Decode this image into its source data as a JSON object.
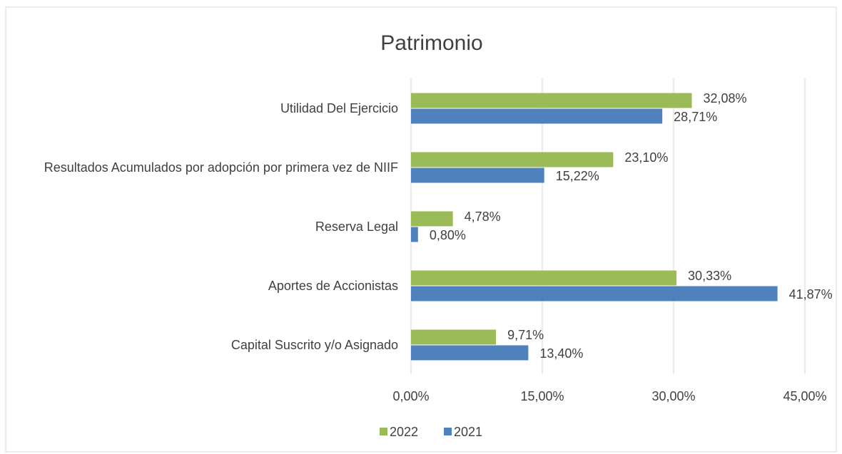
{
  "chart_data": {
    "type": "bar",
    "orientation": "horizontal",
    "title": "Patrimonio",
    "categories": [
      "Utilidad Del Ejercicio",
      "Resultados Acumulados por adopción por primera vez de NIIF",
      "Reserva Legal",
      "Aportes de Accionistas",
      "Capital Suscrito y/o Asignado"
    ],
    "series": [
      {
        "name": "2022",
        "color": "#9bbb59",
        "values": [
          32.08,
          23.1,
          4.78,
          30.33,
          9.71
        ],
        "value_labels": [
          "32,08%",
          "23,10%",
          "4,78%",
          "30,33%",
          "9,71%"
        ]
      },
      {
        "name": "2021",
        "color": "#4f81bd",
        "values": [
          28.71,
          15.22,
          0.8,
          41.87,
          13.4
        ],
        "value_labels": [
          "28,71%",
          "15,22%",
          "0,80%",
          "41,87%",
          "13,40%"
        ]
      }
    ],
    "xlim": [
      0,
      45
    ],
    "xticks": [
      {
        "value": 0,
        "label": "0,00%"
      },
      {
        "value": 15,
        "label": "15,00%"
      },
      {
        "value": 30,
        "label": "30,00%"
      },
      {
        "value": 45,
        "label": "45,00%"
      }
    ],
    "grid": true,
    "legend": "bottom"
  }
}
